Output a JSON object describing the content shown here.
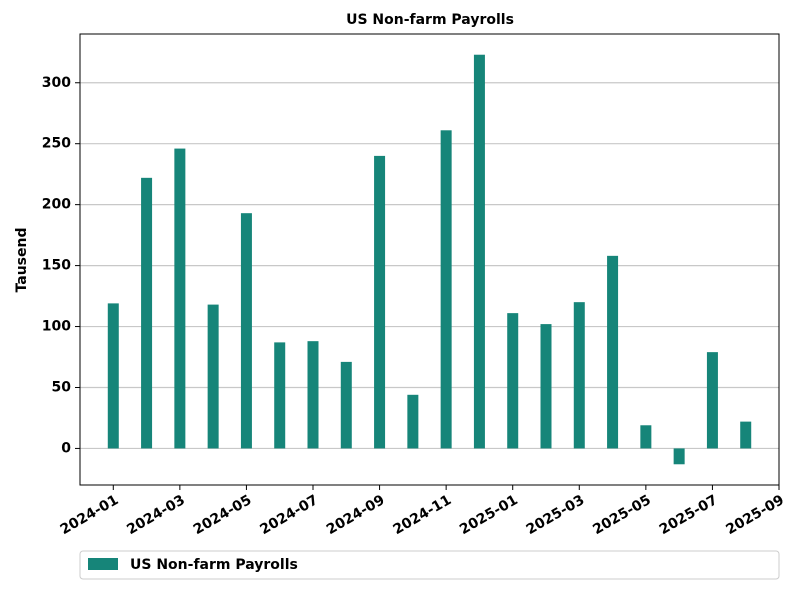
{
  "chart_data": {
    "type": "bar",
    "title": "US Non-farm Payrolls",
    "y_label": "Tausend",
    "x": [
      "2024-01",
      "2024-02",
      "2024-03",
      "2024-04",
      "2024-05",
      "2024-06",
      "2024-07",
      "2024-08",
      "2024-09",
      "2024-10",
      "2024-11",
      "2024-12",
      "2025-01",
      "2025-02",
      "2025-03",
      "2025-04",
      "2025-05",
      "2025-06",
      "2025-07",
      "2025-08"
    ],
    "series": [
      {
        "name": "US Non-farm Payrolls",
        "color": "#168579",
        "values": [
          119,
          222,
          246,
          118,
          193,
          87,
          88,
          71,
          240,
          44,
          261,
          323,
          111,
          102,
          120,
          158,
          19,
          -13,
          79,
          22
        ]
      }
    ],
    "xlim": [
      "2023-12",
      "2025-09"
    ],
    "xticks": [
      "2024-01",
      "2024-03",
      "2024-05",
      "2024-07",
      "2024-09",
      "2024-11",
      "2025-01",
      "2025-03",
      "2025-05",
      "2025-07",
      "2025-09"
    ],
    "ylim": [
      -30,
      340
    ],
    "yticks": [
      0,
      50,
      100,
      150,
      200,
      250,
      300
    ],
    "grid": true,
    "legend": "bottom"
  }
}
